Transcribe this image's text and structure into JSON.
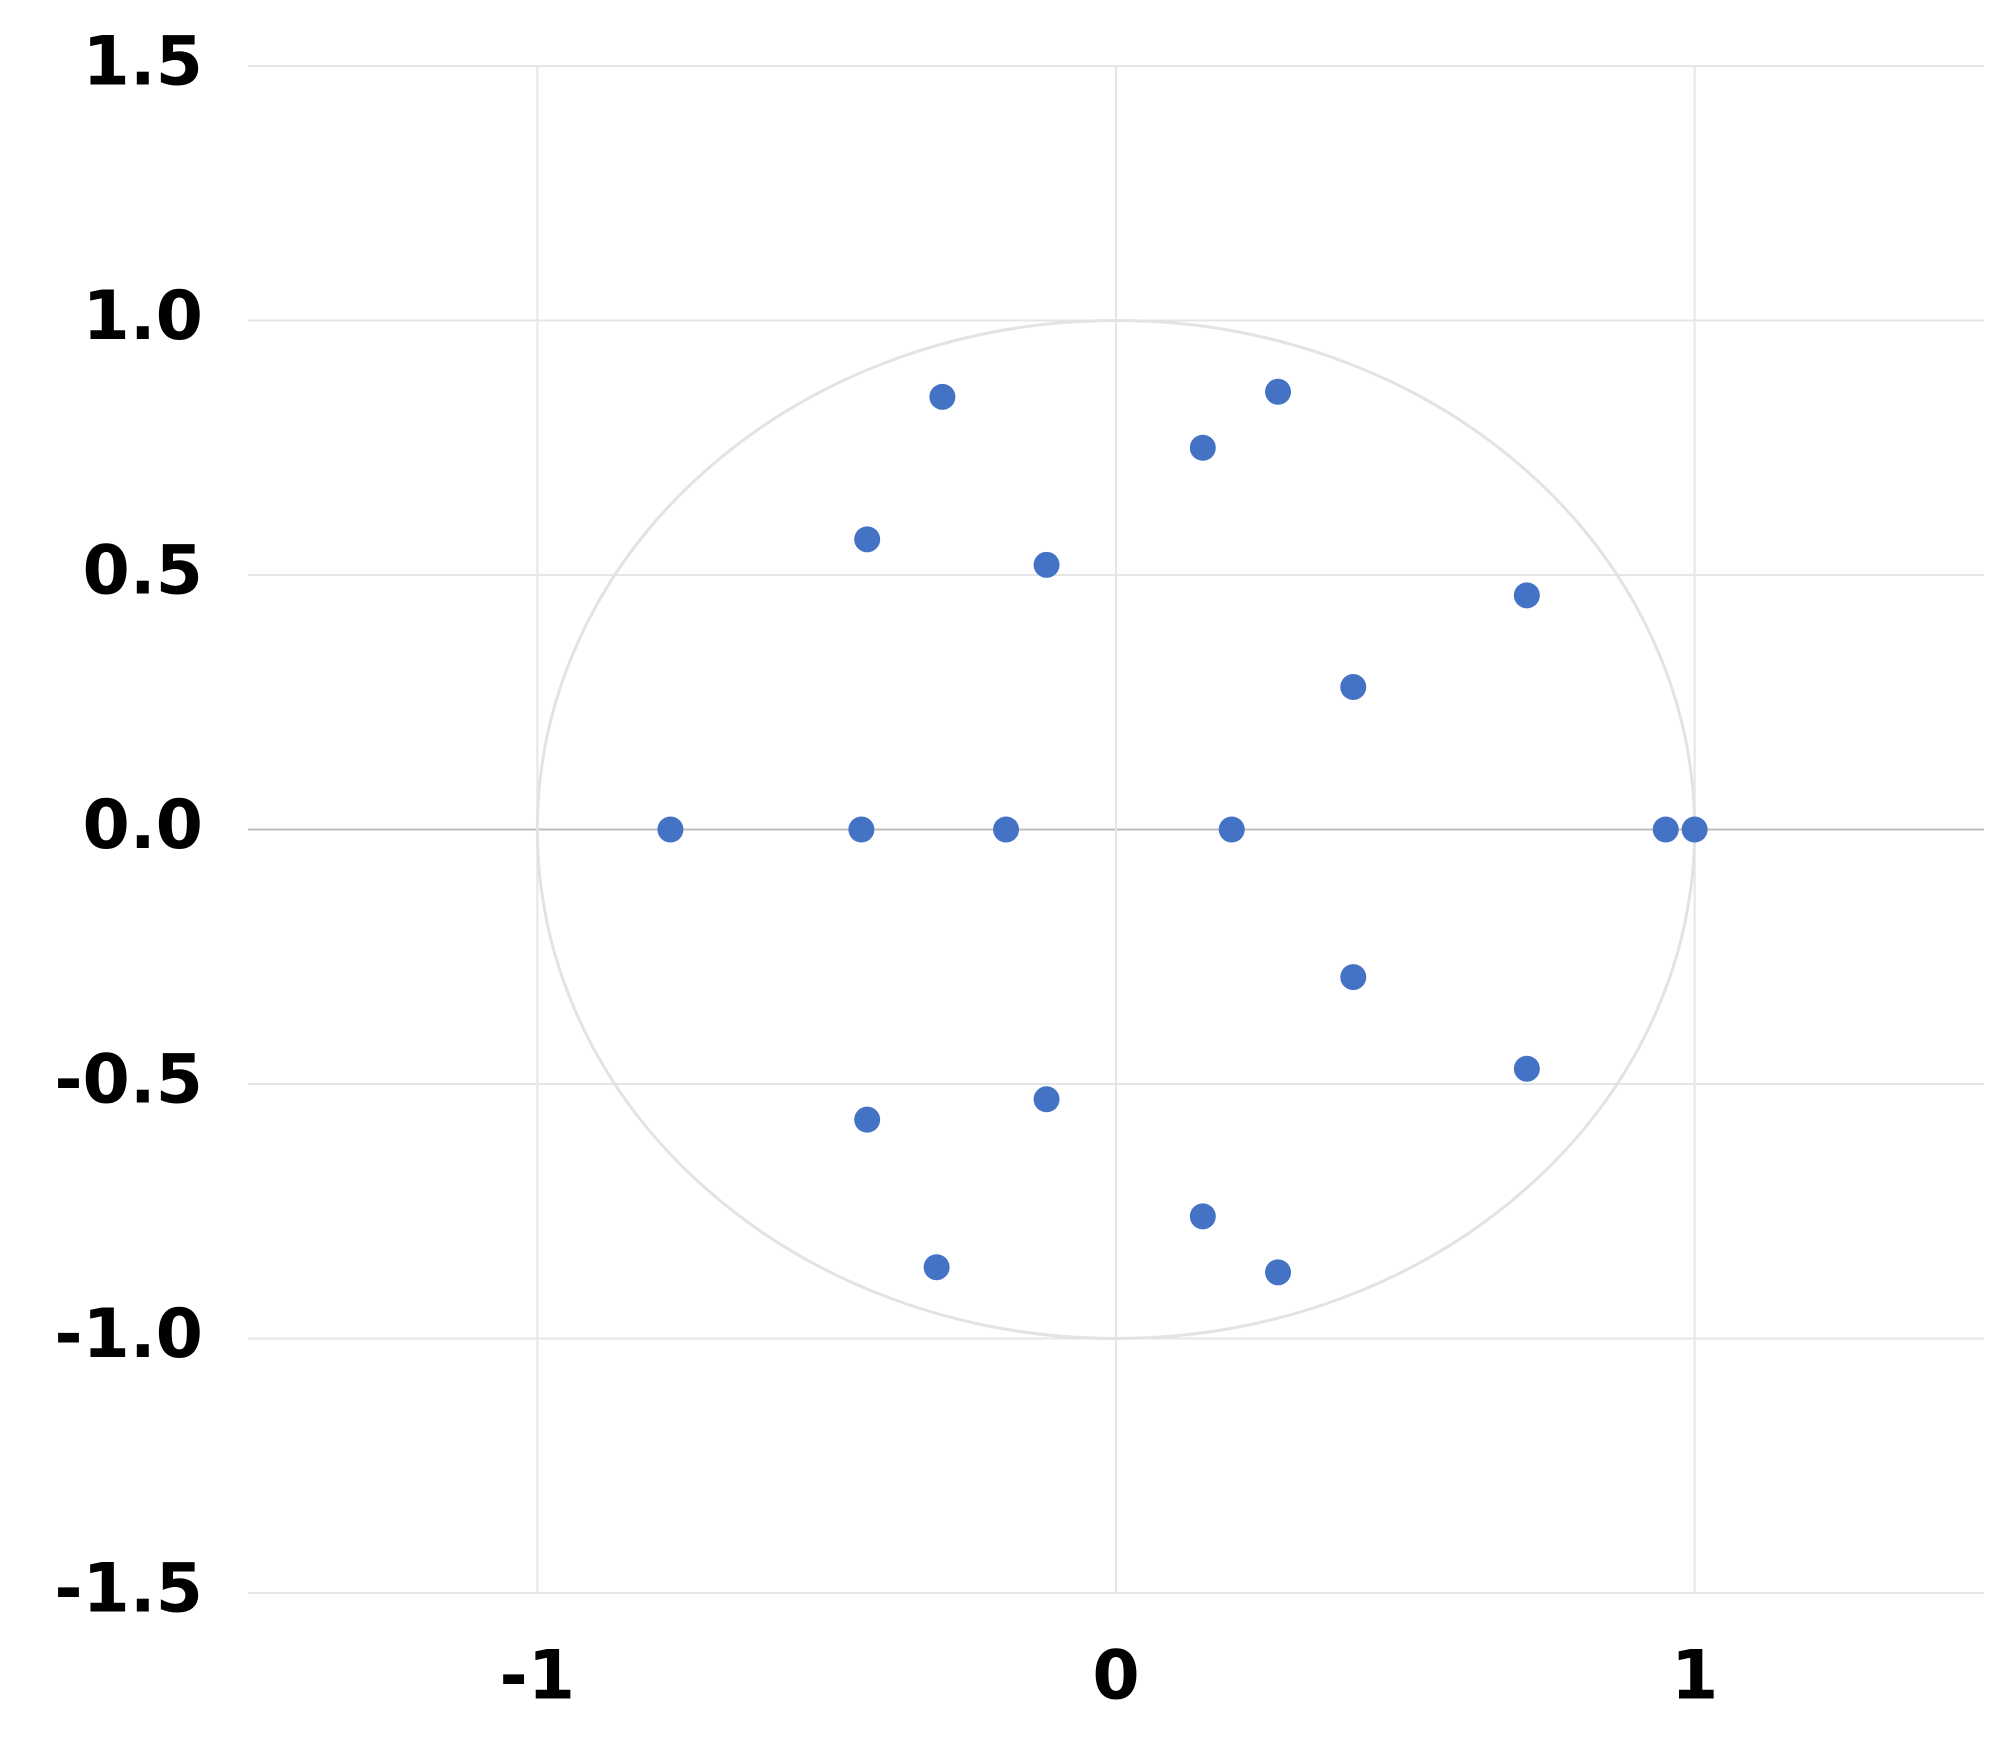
{
  "chart_data": {
    "type": "scatter",
    "x": [
      -0.3,
      0.28,
      0.15,
      -0.43,
      -0.12,
      0.71,
      0.41,
      -0.77,
      -0.44,
      -0.19,
      0.2,
      0.95,
      1.0,
      0.41,
      0.71,
      -0.12,
      -0.43,
      0.15,
      -0.31,
      0.28
    ],
    "series": [
      {
        "color": "#4472c4",
        "values": [
          0.85,
          0.86,
          0.75,
          0.57,
          0.52,
          0.46,
          0.28,
          0,
          0,
          0,
          0,
          0,
          0,
          -0.29,
          -0.47,
          -0.53,
          -0.57,
          -0.76,
          -0.86,
          -0.87
        ]
      }
    ],
    "reference_circle": {
      "center": [
        0,
        0
      ],
      "radius": 1,
      "color": "#e3e3e3"
    },
    "xlim": [
      -1.5,
      1.5
    ],
    "xticks": [
      -1,
      0,
      1
    ],
    "ylim": [
      -1.5,
      1.5
    ],
    "yticks": [
      {
        "value": -1.5,
        "label": "-1.5"
      },
      {
        "value": -1.0,
        "label": "-1.0"
      },
      {
        "value": -0.5,
        "label": "-0.5"
      },
      {
        "value": 0,
        "label": "0.0"
      },
      {
        "value": 0.5,
        "label": "0.5"
      },
      {
        "value": 1.0,
        "label": "1.0"
      },
      {
        "value": 1.5,
        "label": "1.5"
      }
    ],
    "grid": true
  }
}
